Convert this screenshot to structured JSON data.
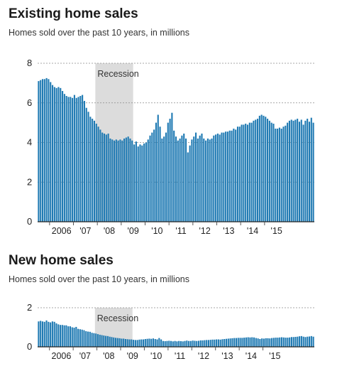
{
  "colors": {
    "bar": "#1f7ab3",
    "recession": "#dcdcdc",
    "axis": "#222222",
    "grid": "#8a8a8a"
  },
  "chart_data": [
    {
      "type": "bar",
      "title": "Existing home sales",
      "subtitle": "Homes sold over the past 10 years, in millions",
      "ylim": [
        0,
        8
      ],
      "yticks": [
        0,
        2,
        4,
        6,
        8
      ],
      "xticks": [
        "2006",
        "'07",
        "'08",
        "'09",
        "'10",
        "'11",
        "'12",
        "'13",
        "'14",
        "'15"
      ],
      "xlim": [
        "2005-07",
        "2015-06"
      ],
      "grid": true,
      "recession": {
        "label": "Recession",
        "start": "2007-12",
        "end": "2009-06"
      },
      "values": [
        7.1,
        7.15,
        7.2,
        7.2,
        7.25,
        7.2,
        7.05,
        6.9,
        6.8,
        6.75,
        6.8,
        6.75,
        6.6,
        6.45,
        6.35,
        6.3,
        6.3,
        6.25,
        6.4,
        6.25,
        6.3,
        6.35,
        6.4,
        6.1,
        5.75,
        5.55,
        5.3,
        5.2,
        5.1,
        4.95,
        4.8,
        4.65,
        4.5,
        4.45,
        4.4,
        4.45,
        4.2,
        4.15,
        4.1,
        4.15,
        4.1,
        4.15,
        4.1,
        4.2,
        4.25,
        4.3,
        4.2,
        4.1,
        3.9,
        4.05,
        3.8,
        3.9,
        3.85,
        3.95,
        4.0,
        4.15,
        4.35,
        4.5,
        4.65,
        5.0,
        5.4,
        4.8,
        4.2,
        4.3,
        4.5,
        5.0,
        5.2,
        5.5,
        4.6,
        4.3,
        4.1,
        4.2,
        4.35,
        4.45,
        4.2,
        3.5,
        3.85,
        4.15,
        4.3,
        4.5,
        4.2,
        4.35,
        4.45,
        4.2,
        4.1,
        4.2,
        4.15,
        4.2,
        4.35,
        4.4,
        4.45,
        4.4,
        4.5,
        4.5,
        4.55,
        4.55,
        4.6,
        4.6,
        4.7,
        4.65,
        4.8,
        4.8,
        4.9,
        4.9,
        4.95,
        4.9,
        5.0,
        5.0,
        5.1,
        5.15,
        5.2,
        5.35,
        5.4,
        5.35,
        5.3,
        5.2,
        5.1,
        5.0,
        4.95,
        4.7,
        4.7,
        4.75,
        4.7,
        4.8,
        4.85,
        5.0,
        5.1,
        5.15,
        5.1,
        5.15,
        5.2,
        5.05,
        5.15,
        4.9,
        5.1,
        5.2,
        5.05,
        5.25,
        5.0
      ],
      "source_block": "existing"
    },
    {
      "type": "bar",
      "title": "New home sales",
      "subtitle": "Homes sold over the past 10 years, in millions",
      "ylim": [
        0,
        2
      ],
      "yticks": [
        0,
        2
      ],
      "xticks": [
        "2006",
        "'07",
        "'08",
        "'09",
        "'10",
        "'11",
        "'12",
        "'13",
        "'14",
        "'15"
      ],
      "xlim": [
        "2005-07",
        "2015-06"
      ],
      "grid": true,
      "recession": {
        "label": "Recession",
        "start": "2007-12",
        "end": "2009-06"
      },
      "values": [
        1.3,
        1.33,
        1.3,
        1.28,
        1.35,
        1.28,
        1.25,
        1.3,
        1.28,
        1.2,
        1.15,
        1.12,
        1.12,
        1.1,
        1.1,
        1.05,
        1.05,
        1.0,
        0.98,
        1.02,
        0.92,
        0.9,
        0.88,
        0.85,
        0.8,
        0.78,
        0.77,
        0.72,
        0.7,
        0.68,
        0.65,
        0.62,
        0.6,
        0.58,
        0.56,
        0.55,
        0.52,
        0.5,
        0.48,
        0.46,
        0.45,
        0.44,
        0.42,
        0.42,
        0.4,
        0.39,
        0.38,
        0.38,
        0.36,
        0.35,
        0.35,
        0.37,
        0.38,
        0.38,
        0.4,
        0.41,
        0.42,
        0.41,
        0.43,
        0.4,
        0.38,
        0.45,
        0.38,
        0.3,
        0.29,
        0.3,
        0.31,
        0.3,
        0.28,
        0.3,
        0.28,
        0.3,
        0.29,
        0.28,
        0.3,
        0.32,
        0.3,
        0.3,
        0.32,
        0.31,
        0.3,
        0.31,
        0.33,
        0.33,
        0.34,
        0.35,
        0.35,
        0.36,
        0.37,
        0.37,
        0.38,
        0.38,
        0.37,
        0.39,
        0.4,
        0.41,
        0.42,
        0.43,
        0.44,
        0.45,
        0.45,
        0.46,
        0.46,
        0.46,
        0.47,
        0.48,
        0.49,
        0.48,
        0.49,
        0.48,
        0.45,
        0.43,
        0.4,
        0.43,
        0.42,
        0.44,
        0.44,
        0.43,
        0.45,
        0.46,
        0.47,
        0.47,
        0.48,
        0.49,
        0.48,
        0.47,
        0.47,
        0.48,
        0.5,
        0.5,
        0.51,
        0.52,
        0.54,
        0.55,
        0.52,
        0.5,
        0.52,
        0.53,
        0.55,
        0.52
      ]
    }
  ]
}
